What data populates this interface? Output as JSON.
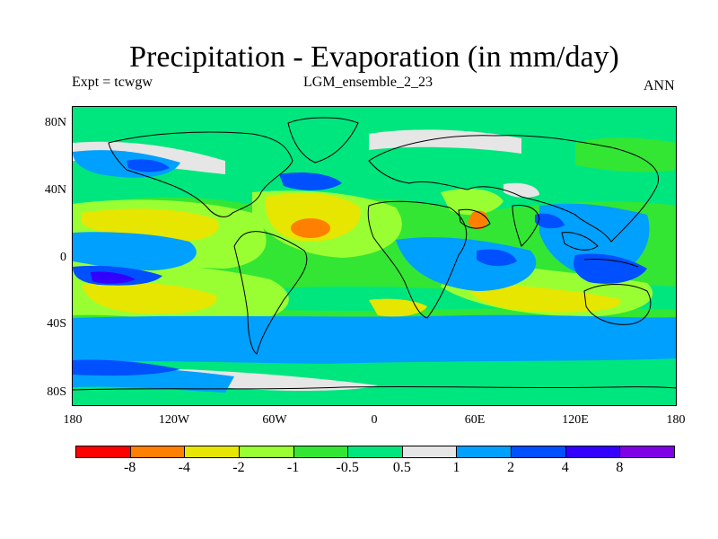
{
  "title": "Precipitation - Evaporation (in mm/day)",
  "subtitle": {
    "left": "Expt = tcwgw",
    "center": "LGM_ensemble_2_23",
    "right": "ANN"
  },
  "y_ticks": [
    "80N",
    "40N",
    "0",
    "40S",
    "80S"
  ],
  "x_ticks": [
    "180",
    "120W",
    "60W",
    "0",
    "60E",
    "120E",
    "180"
  ],
  "colorbar": {
    "colors": [
      "#ff0000",
      "#ff7f00",
      "#e6e600",
      "#99ff33",
      "#33e633",
      "#00e67f",
      "#e6e6e6",
      "#00a0ff",
      "#0050ff",
      "#3300ff",
      "#8000e6"
    ],
    "labels": [
      "-8",
      "-4",
      "-2",
      "-1",
      "-0.5",
      "0.5",
      "1",
      "2",
      "4",
      "8"
    ]
  },
  "legend_colors": {
    "lt_neg8": "#ff0000",
    "neg8_neg4": "#ff7f00",
    "neg4_neg2": "#e6e600",
    "neg2_neg1": "#99ff33",
    "neg1_neg05": "#33e633",
    "neg05_05": "#00e67f",
    "p05_1": "#e6e6e6",
    "p1_2": "#00a0ff",
    "p2_4": "#0050ff",
    "p4_8": "#3300ff",
    "gt8": "#8000e6"
  }
}
